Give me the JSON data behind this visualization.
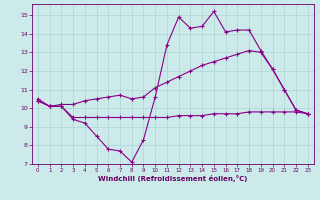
{
  "x": [
    0,
    1,
    2,
    3,
    4,
    5,
    6,
    7,
    8,
    9,
    10,
    11,
    12,
    13,
    14,
    15,
    16,
    17,
    18,
    19,
    20,
    21,
    22,
    23
  ],
  "line1": [
    10.5,
    10.1,
    10.1,
    9.4,
    9.2,
    8.5,
    7.8,
    7.7,
    7.1,
    8.3,
    10.6,
    13.4,
    14.9,
    14.3,
    14.4,
    15.2,
    14.1,
    14.2,
    14.2,
    13.1,
    12.1,
    11.0,
    9.9,
    9.7
  ],
  "line2": [
    10.4,
    10.1,
    10.2,
    10.2,
    10.4,
    10.5,
    10.6,
    10.7,
    10.5,
    10.6,
    11.1,
    11.4,
    11.7,
    12.0,
    12.3,
    12.5,
    12.7,
    12.9,
    13.1,
    13.0,
    12.1,
    11.0,
    9.9,
    9.7
  ],
  "line3": [
    10.4,
    10.1,
    10.1,
    9.5,
    9.5,
    9.5,
    9.5,
    9.5,
    9.5,
    9.5,
    9.5,
    9.5,
    9.6,
    9.6,
    9.6,
    9.7,
    9.7,
    9.7,
    9.8,
    9.8,
    9.8,
    9.8,
    9.8,
    9.7
  ],
  "line_color": "#880088",
  "bg_color": "#cceaea",
  "grid_color": "#aad4d4",
  "axis_color": "#660066",
  "xlabel": "Windchill (Refroidissement éolien,°C)",
  "ylim": [
    7,
    15.6
  ],
  "xlim_min": -0.5,
  "xlim_max": 23.5,
  "yticks": [
    7,
    8,
    9,
    10,
    11,
    12,
    13,
    14,
    15
  ],
  "xticks": [
    0,
    1,
    2,
    3,
    4,
    5,
    6,
    7,
    8,
    9,
    10,
    11,
    12,
    13,
    14,
    15,
    16,
    17,
    18,
    19,
    20,
    21,
    22,
    23
  ]
}
